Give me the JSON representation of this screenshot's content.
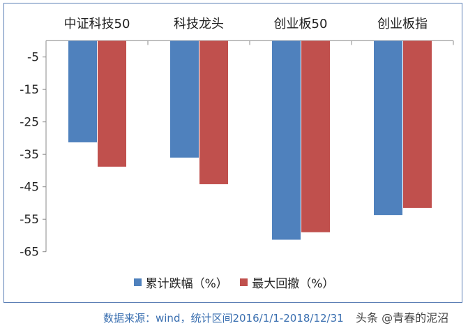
{
  "chart_data": {
    "type": "bar",
    "categories": [
      "中证科技50",
      "科技龙头",
      "创业板50",
      "创业板指"
    ],
    "series": [
      {
        "name": "累计跌幅（%）",
        "values": [
          -31.3,
          -36.0,
          -61.3,
          -53.7
        ],
        "color": "#4f81bd"
      },
      {
        "name": "最大回撤（%）",
        "values": [
          -38.8,
          -44.2,
          -59.0,
          -51.5
        ],
        "color": "#c0504d"
      }
    ],
    "ylim": [
      -65,
      0
    ],
    "yticks": [
      -5,
      -15,
      -25,
      -35,
      -45,
      -55,
      -65
    ],
    "category_labels_position": "top",
    "legend": "bottom",
    "grid": false
  },
  "source": "数据来源：wind，统计区间2016/1/1-2018/12/31",
  "watermark": "头条 @青春的泥沼"
}
